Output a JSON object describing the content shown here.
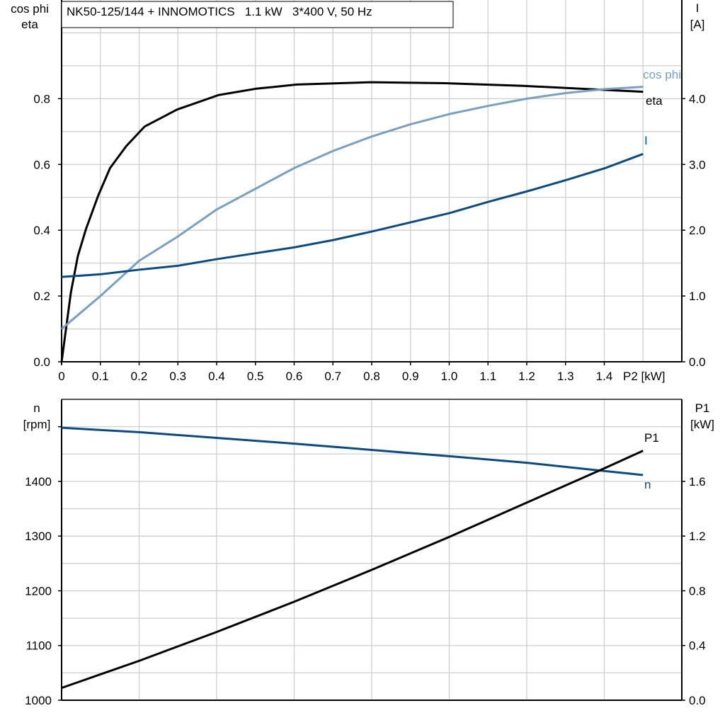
{
  "chart_data": [
    {
      "type": "line",
      "title": "NK50-125/144 + INNOMOTICS   1.1 kW   3*400 V, 50 Hz",
      "xlabel": "P2 [kW]",
      "ylabel_left": [
        "cos phi",
        "eta"
      ],
      "ylabel_right": [
        "I",
        "[A]"
      ],
      "xlim": [
        0,
        1.6
      ],
      "ylim_left": [
        0,
        1.1
      ],
      "ylim_right": [
        0,
        5.5
      ],
      "x_ticks": [
        "0",
        "0.1",
        "0.2",
        "0.3",
        "0.4",
        "0.5",
        "0.6",
        "0.7",
        "0.8",
        "0.9",
        "1.0",
        "1.1",
        "1.2",
        "1.3",
        "1.4"
      ],
      "y_ticks_left": [
        "0.0",
        "0.2",
        "0.4",
        "0.6",
        "0.8"
      ],
      "y_ticks_right": [
        "0.0",
        "1.0",
        "2.0",
        "3.0",
        "4.0"
      ],
      "grid": true,
      "series": [
        {
          "name": "eta",
          "axis": "left",
          "color": "#000000",
          "x": [
            0,
            0.024,
            0.042,
            0.063,
            0.095,
            0.125,
            0.167,
            0.214,
            0.298,
            0.405,
            0.5,
            0.607,
            0.798,
            0.988,
            1.19,
            1.5
          ],
          "y": [
            0,
            0.211,
            0.322,
            0.404,
            0.507,
            0.589,
            0.656,
            0.715,
            0.767,
            0.811,
            0.83,
            0.843,
            0.85,
            0.847,
            0.839,
            0.821
          ]
        },
        {
          "name": "cos phi",
          "axis": "left",
          "color": "#7a9fc0",
          "x": [
            0,
            0.1,
            0.2,
            0.3,
            0.4,
            0.5,
            0.6,
            0.7,
            0.8,
            0.9,
            1.0,
            1.1,
            1.2,
            1.3,
            1.4,
            1.5
          ],
          "y": [
            0.1,
            0.2,
            0.307,
            0.381,
            0.463,
            0.526,
            0.589,
            0.641,
            0.685,
            0.722,
            0.753,
            0.778,
            0.8,
            0.817,
            0.829,
            0.836
          ]
        },
        {
          "name": "I",
          "axis": "right",
          "color": "#0d4a80",
          "x": [
            0,
            0.1,
            0.2,
            0.3,
            0.4,
            0.5,
            0.6,
            0.7,
            0.8,
            0.9,
            1.0,
            1.1,
            1.2,
            1.3,
            1.4,
            1.5
          ],
          "y": [
            1.29,
            1.33,
            1.4,
            1.46,
            1.56,
            1.65,
            1.74,
            1.85,
            1.98,
            2.12,
            2.26,
            2.43,
            2.59,
            2.76,
            2.94,
            3.16
          ]
        }
      ]
    },
    {
      "type": "line",
      "xlim": [
        0,
        1.6
      ],
      "ylabel_left": [
        "n",
        "[rpm]"
      ],
      "ylabel_right": [
        "P1",
        "[kW]"
      ],
      "ylim_left": [
        1000,
        1550
      ],
      "ylim_right": [
        0,
        2.2
      ],
      "y_ticks_left": [
        "1000",
        "1100",
        "1200",
        "1300",
        "1400"
      ],
      "y_ticks_right": [
        "0.0",
        "0.4",
        "0.8",
        "1.2",
        "1.6"
      ],
      "grid": true,
      "series": [
        {
          "name": "n",
          "axis": "left",
          "color": "#0d4a80",
          "x": [
            0,
            0.2,
            0.6,
            1.0,
            1.2,
            1.4,
            1.5
          ],
          "y": [
            1498,
            1490,
            1469,
            1446,
            1434,
            1419,
            1411.6
          ]
        },
        {
          "name": "P1",
          "axis": "right",
          "color": "#000000",
          "x": [
            0,
            0.2,
            0.4,
            0.6,
            0.8,
            1.0,
            1.2,
            1.4,
            1.5
          ],
          "y": [
            0.09,
            0.288,
            0.499,
            0.72,
            0.953,
            1.194,
            1.445,
            1.695,
            1.824
          ]
        }
      ]
    }
  ]
}
